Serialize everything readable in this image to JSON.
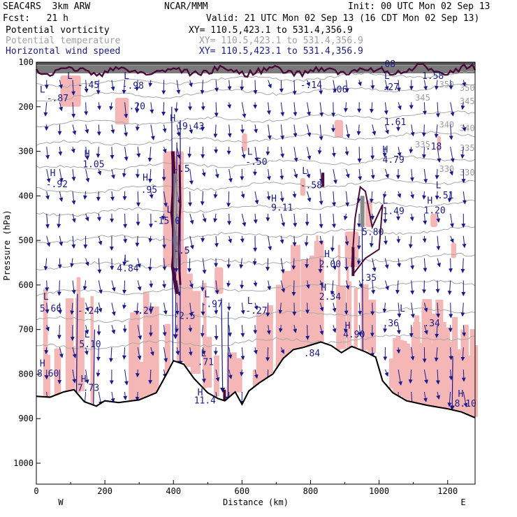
{
  "header": {
    "model": "SEAC4RS  3km ARW",
    "org": "NCAR/MMM",
    "init": "Init: 00 UTC Mon 02 Sep 13",
    "fcst": "Fcst:   21 h",
    "valid": "Valid: 21 UTC Mon 02 Sep 13 (16 CDT Mon 02 Sep 13)"
  },
  "fields": [
    {
      "name": "Potential vorticity",
      "xy": "XY= 110.5,423.1 to 531.4,356.9",
      "color": "#000000"
    },
    {
      "name": "Potential temperature",
      "xy": "XY= 110.5,423.1 to 531.4,356.9",
      "color": "#a0a0a0"
    },
    {
      "name": "Horizontal wind speed",
      "xy": "XY= 110.5,423.1 to 531.4,356.9",
      "color": "#1a1a8c"
    }
  ],
  "colors": {
    "pv_fill": "#f5b6b6",
    "pv_contour": "#4a0a3c",
    "theta": "#a8a8a8",
    "wind": "#1a1a8c",
    "terrain": "#000000"
  },
  "chart_data": {
    "type": "cross-section",
    "xlabel": "Distance (km)",
    "ylabel": "Pressure (hPa)",
    "xlim": [
      0,
      1280
    ],
    "ylim": [
      1050,
      100
    ],
    "x_ticks": [
      "0",
      "200",
      "400",
      "600",
      "800",
      "1000",
      "1200"
    ],
    "y_ticks": [
      "100",
      "200",
      "300",
      "400",
      "500",
      "600",
      "700",
      "800",
      "900",
      "1000"
    ],
    "end_labels": {
      "left": "W",
      "right": "E"
    },
    "terrain": [
      {
        "x": 0,
        "p": 850
      },
      {
        "x": 40,
        "p": 852
      },
      {
        "x": 80,
        "p": 840
      },
      {
        "x": 110,
        "p": 835
      },
      {
        "x": 140,
        "p": 862
      },
      {
        "x": 175,
        "p": 872
      },
      {
        "x": 200,
        "p": 860
      },
      {
        "x": 240,
        "p": 864
      },
      {
        "x": 300,
        "p": 858
      },
      {
        "x": 350,
        "p": 842
      },
      {
        "x": 380,
        "p": 800
      },
      {
        "x": 400,
        "p": 770
      },
      {
        "x": 430,
        "p": 778
      },
      {
        "x": 460,
        "p": 810
      },
      {
        "x": 500,
        "p": 842
      },
      {
        "x": 530,
        "p": 855
      },
      {
        "x": 550,
        "p": 860
      },
      {
        "x": 580,
        "p": 840
      },
      {
        "x": 600,
        "p": 868
      },
      {
        "x": 620,
        "p": 838
      },
      {
        "x": 650,
        "p": 820
      },
      {
        "x": 690,
        "p": 800
      },
      {
        "x": 720,
        "p": 765
      },
      {
        "x": 750,
        "p": 745
      },
      {
        "x": 780,
        "p": 740
      },
      {
        "x": 800,
        "p": 735
      },
      {
        "x": 830,
        "p": 728
      },
      {
        "x": 860,
        "p": 736
      },
      {
        "x": 890,
        "p": 752
      },
      {
        "x": 920,
        "p": 738
      },
      {
        "x": 960,
        "p": 750
      },
      {
        "x": 990,
        "p": 762
      },
      {
        "x": 1010,
        "p": 815
      },
      {
        "x": 1040,
        "p": 842
      },
      {
        "x": 1080,
        "p": 860
      },
      {
        "x": 1140,
        "p": 870
      },
      {
        "x": 1200,
        "p": 878
      },
      {
        "x": 1240,
        "p": 885
      },
      {
        "x": 1280,
        "p": 898
      }
    ],
    "theta_levels": [
      {
        "label": "350",
        "p": 150
      },
      {
        "label": "345",
        "p": 180
      },
      {
        "label": "340",
        "p": 240
      },
      {
        "label": "335",
        "p": 285
      },
      {
        "label": "330",
        "p": 340
      }
    ],
    "pv_labels": [
      {
        "text": "L",
        "x": 90,
        "p": 130
      },
      {
        "text": "-.45",
        "x": 120,
        "p": 150
      },
      {
        "text": "L",
        "x": 10,
        "p": 160
      },
      {
        "text": "-.87",
        "x": 30,
        "p": 180
      },
      {
        "text": "L",
        "x": 255,
        "p": 130
      },
      {
        "text": "-.98",
        "x": 250,
        "p": 152
      },
      {
        "text": ".20",
        "x": 270,
        "p": 198
      },
      {
        "text": "H",
        "x": 390,
        "p": 225
      },
      {
        "text": "19.43",
        "x": 410,
        "p": 243
      },
      {
        "text": "H",
        "x": 140,
        "p": 305
      },
      {
        "text": "1.05",
        "x": 135,
        "p": 328
      },
      {
        "text": "H",
        "x": 40,
        "p": 348
      },
      {
        "text": "-.92",
        "x": 28,
        "p": 373
      },
      {
        "text": "H",
        "x": 310,
        "p": 358
      },
      {
        "text": ".95",
        "x": 305,
        "p": 385
      },
      {
        "text": "-.5",
        "x": 400,
        "p": 338
      },
      {
        "text": "L",
        "x": 615,
        "p": 300
      },
      {
        "text": "-.50",
        "x": 610,
        "p": 323
      },
      {
        "text": "L",
        "x": 775,
        "p": 343
      },
      {
        "text": "-.58",
        "x": 770,
        "p": 375
      },
      {
        "text": "L",
        "x": 380,
        "p": 430
      },
      {
        "text": "-15.0",
        "x": 340,
        "p": 455
      },
      {
        "text": "H",
        "x": 685,
        "p": 405
      },
      {
        "text": "9.11",
        "x": 685,
        "p": 425
      },
      {
        "text": "H",
        "x": 1010,
        "p": 295
      },
      {
        "text": "4.79",
        "x": 1010,
        "p": 318
      },
      {
        "text": ".18",
        "x": 1135,
        "p": 288
      },
      {
        "text": "1.61",
        "x": 1015,
        "p": 233
      },
      {
        "text": "L",
        "x": 1015,
        "p": 130
      },
      {
        "text": ".27",
        "x": 1010,
        "p": 155
      },
      {
        "text": "-.14",
        "x": 770,
        "p": 150
      },
      {
        "text": ".06",
        "x": 860,
        "p": 160
      },
      {
        "text": "1.58",
        "x": 1125,
        "p": 130
      },
      {
        "text": ".08",
        "x": 1000,
        "p": 103
      },
      {
        "text": "L",
        "x": 1165,
        "p": 375
      },
      {
        "text": ".51",
        "x": 1170,
        "p": 398
      },
      {
        "text": "H",
        "x": 1140,
        "p": 410
      },
      {
        "text": "1.20",
        "x": 1130,
        "p": 432
      },
      {
        "text": "L",
        "x": 1010,
        "p": 410
      },
      {
        "text": "1.49",
        "x": 1010,
        "p": 433
      },
      {
        "text": "5.80",
        "x": 950,
        "p": 480
      },
      {
        "text": "H",
        "x": 840,
        "p": 530
      },
      {
        "text": "2.00",
        "x": 825,
        "p": 552
      },
      {
        "text": "L",
        "x": 255,
        "p": 540
      },
      {
        "text": "4.84",
        "x": 235,
        "p": 562
      },
      {
        "text": "-.5",
        "x": 400,
        "p": 522
      },
      {
        "text": ".35",
        "x": 945,
        "p": 583
      },
      {
        "text": "H",
        "x": 830,
        "p": 605
      },
      {
        "text": "2.34",
        "x": 825,
        "p": 625
      },
      {
        "text": "L",
        "x": 20,
        "p": 625
      },
      {
        "text": "5.66",
        "x": 10,
        "p": 652
      },
      {
        "text": "L",
        "x": 490,
        "p": 620
      },
      {
        "text": "-.97",
        "x": 480,
        "p": 642
      },
      {
        "text": "-.27",
        "x": 280,
        "p": 657
      },
      {
        "text": "-.24",
        "x": 120,
        "p": 657
      },
      {
        "text": "L",
        "x": 615,
        "p": 635
      },
      {
        "text": "-.27",
        "x": 610,
        "p": 657
      },
      {
        "text": "-2.5",
        "x": 400,
        "p": 668
      },
      {
        "text": "L",
        "x": 1060,
        "p": 652
      },
      {
        "text": ".36",
        "x": 1010,
        "p": 685
      },
      {
        "text": ".34",
        "x": 1130,
        "p": 685
      },
      {
        "text": "H",
        "x": 900,
        "p": 690
      },
      {
        "text": "4.90",
        "x": 895,
        "p": 710
      },
      {
        "text": "L",
        "x": 140,
        "p": 710
      },
      {
        "text": "5.10",
        "x": 125,
        "p": 732
      },
      {
        "text": ".84",
        "x": 780,
        "p": 752
      },
      {
        "text": "L",
        "x": 480,
        "p": 752
      },
      {
        "text": ".71",
        "x": 470,
        "p": 772
      },
      {
        "text": "H",
        "x": 10,
        "p": 775
      },
      {
        "text": "8.60",
        "x": 2,
        "p": 798
      },
      {
        "text": "H",
        "x": 130,
        "p": 810
      },
      {
        "text": "7.73",
        "x": 120,
        "p": 830
      },
      {
        "text": "H",
        "x": 470,
        "p": 840
      },
      {
        "text": "11.4",
        "x": 460,
        "p": 858
      },
      {
        "text": "H",
        "x": 1230,
        "p": 843
      },
      {
        "text": "8.10",
        "x": 1220,
        "p": 865
      }
    ]
  }
}
